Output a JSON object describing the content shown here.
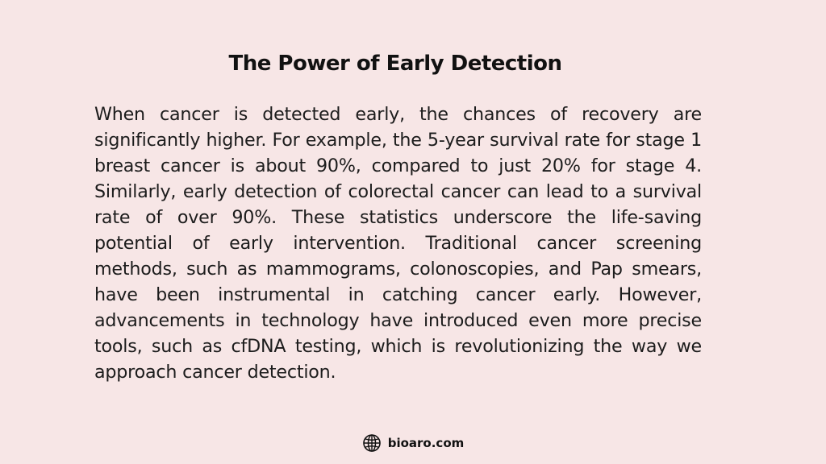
{
  "slide": {
    "title": "The Power of Early Detection",
    "body": "When cancer is detected early, the chances of recovery are significantly higher. For example, the 5-year survival rate for stage 1 breast cancer is about 90%, compared to just 20% for stage 4. Similarly, early detection of colorectal cancer can lead to a survival rate of over 90%. These statistics underscore the life-saving potential of early intervention. Traditional cancer screening methods, such as mammograms, colonoscopies, and Pap smears, have been instrumental in catching cancer early. However, advancements in technology have introduced even more precise tools, such as cfDNA testing, which is revolutionizing the way we approach cancer detection."
  },
  "footer": {
    "icon": "globe-icon",
    "site": "bioaro.com"
  },
  "colors": {
    "background": "#f7e6e6",
    "text": "#1c1c1c"
  }
}
